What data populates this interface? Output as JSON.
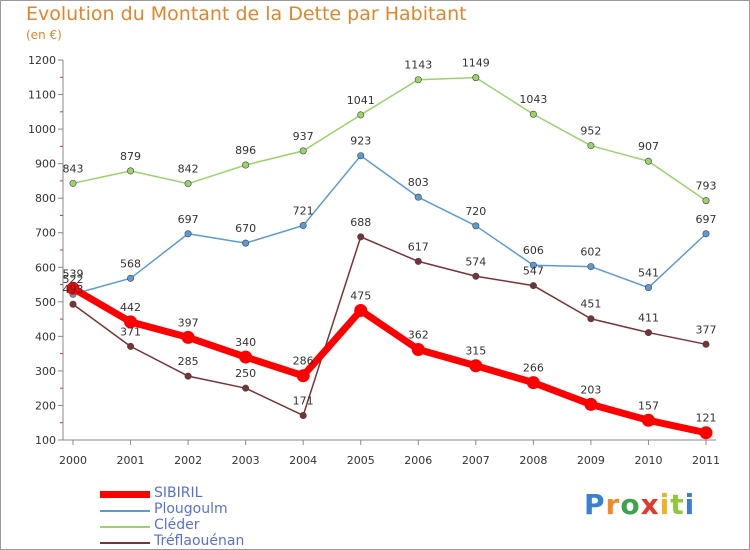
{
  "header": {
    "title": "Evolution du Montant de la Dette par Habitant",
    "unit": "(en €)"
  },
  "logo": {
    "letters": [
      "P",
      "r",
      "o",
      "x",
      "i",
      "t",
      "i"
    ],
    "colors": [
      "#3a7fd0",
      "#f08a2a",
      "#3ea34a",
      "#e23a2a",
      "#f2b21e",
      "#8fc83a",
      "#3a7fd0"
    ]
  },
  "chart_data": {
    "type": "line",
    "title": "Evolution du Montant de la Dette par Habitant",
    "ylabel": "(en €)",
    "xlabel": "",
    "x": [
      "2000",
      "2001",
      "2002",
      "2003",
      "2004",
      "2005",
      "2006",
      "2007",
      "2008",
      "2009",
      "2010",
      "2011"
    ],
    "ylim": [
      100,
      1200
    ],
    "yticks": [
      100,
      200,
      300,
      400,
      500,
      600,
      700,
      800,
      900,
      1000,
      1100,
      1200
    ],
    "grid": false,
    "legend_position": "bottom-left",
    "series": [
      {
        "name": "SIBIRIL",
        "color": "#ff0000",
        "emphasis": true,
        "values": [
          539,
          442,
          397,
          340,
          286,
          475,
          362,
          315,
          266,
          203,
          157,
          121
        ],
        "labels": [
          "539",
          "442",
          "397",
          "340",
          "286",
          "475",
          "362",
          "315",
          "266",
          "203",
          "157",
          "121"
        ]
      },
      {
        "name": "Plougoulm",
        "color": "#5b9bd5",
        "values": [
          522,
          568,
          697,
          670,
          721,
          923,
          803,
          720,
          606,
          602,
          541,
          697
        ],
        "labels": [
          "522",
          "568",
          "697",
          "670",
          "721",
          "923",
          "803",
          "720",
          "606",
          "602",
          "541",
          "697"
        ]
      },
      {
        "name": "Cléder",
        "color": "#99d36a",
        "values": [
          843,
          879,
          842,
          896,
          937,
          1041,
          1143,
          1149,
          1043,
          952,
          907,
          793
        ],
        "labels": [
          "843",
          "879",
          "842",
          "896",
          "937",
          "1041",
          "1143",
          "1149",
          "1043",
          "952",
          "907",
          "793"
        ]
      },
      {
        "name": "Tréflaouénan",
        "color": "#7b3236",
        "values": [
          493,
          371,
          285,
          250,
          171,
          688,
          617,
          574,
          547,
          451,
          411,
          377
        ],
        "labels": [
          "493",
          "371",
          "285",
          "250",
          "171",
          "688",
          "617",
          "574",
          "547",
          "451",
          "411",
          "377"
        ]
      }
    ]
  }
}
